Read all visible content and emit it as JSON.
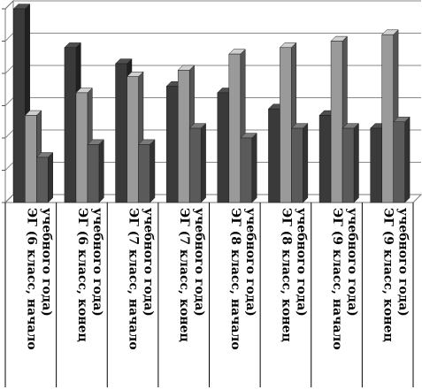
{
  "chart_data": {
    "type": "bar",
    "bar_style": "3d",
    "title": "",
    "xlabel": "",
    "ylabel": "",
    "ylim": [
      0,
      6
    ],
    "ytick_count": 6,
    "grid": true,
    "legend": "none",
    "categories": [
      [
        "ЭГ (6 класс, начало",
        "учебного года)"
      ],
      [
        "ЭГ (6 класс, конец",
        "учебного года)"
      ],
      [
        "ЭГ (7 класс, начало",
        "учебного года)"
      ],
      [
        "ЭГ (7 класс, конец",
        "учебного года)"
      ],
      [
        "ЭГ (8 класс, начало",
        "учебного года)"
      ],
      [
        "ЭГ (8 класс, конец",
        "учебного года)"
      ],
      [
        "ЭГ (9 класс, начало",
        "учебного года)"
      ],
      [
        "ЭГ (9 класс, конец",
        "учебного года)"
      ]
    ],
    "series": [
      {
        "color": "#3a3a3a",
        "values": [
          6.0,
          4.8,
          4.3,
          3.6,
          3.4,
          2.9,
          2.7,
          2.3
        ]
      },
      {
        "color": "#9a9a9a",
        "values": [
          2.7,
          3.4,
          3.9,
          4.1,
          4.6,
          4.8,
          5.0,
          5.2
        ]
      },
      {
        "color": "#5a5a5a",
        "values": [
          1.4,
          1.8,
          1.8,
          2.3,
          2.0,
          2.3,
          2.3,
          2.5
        ]
      }
    ]
  }
}
